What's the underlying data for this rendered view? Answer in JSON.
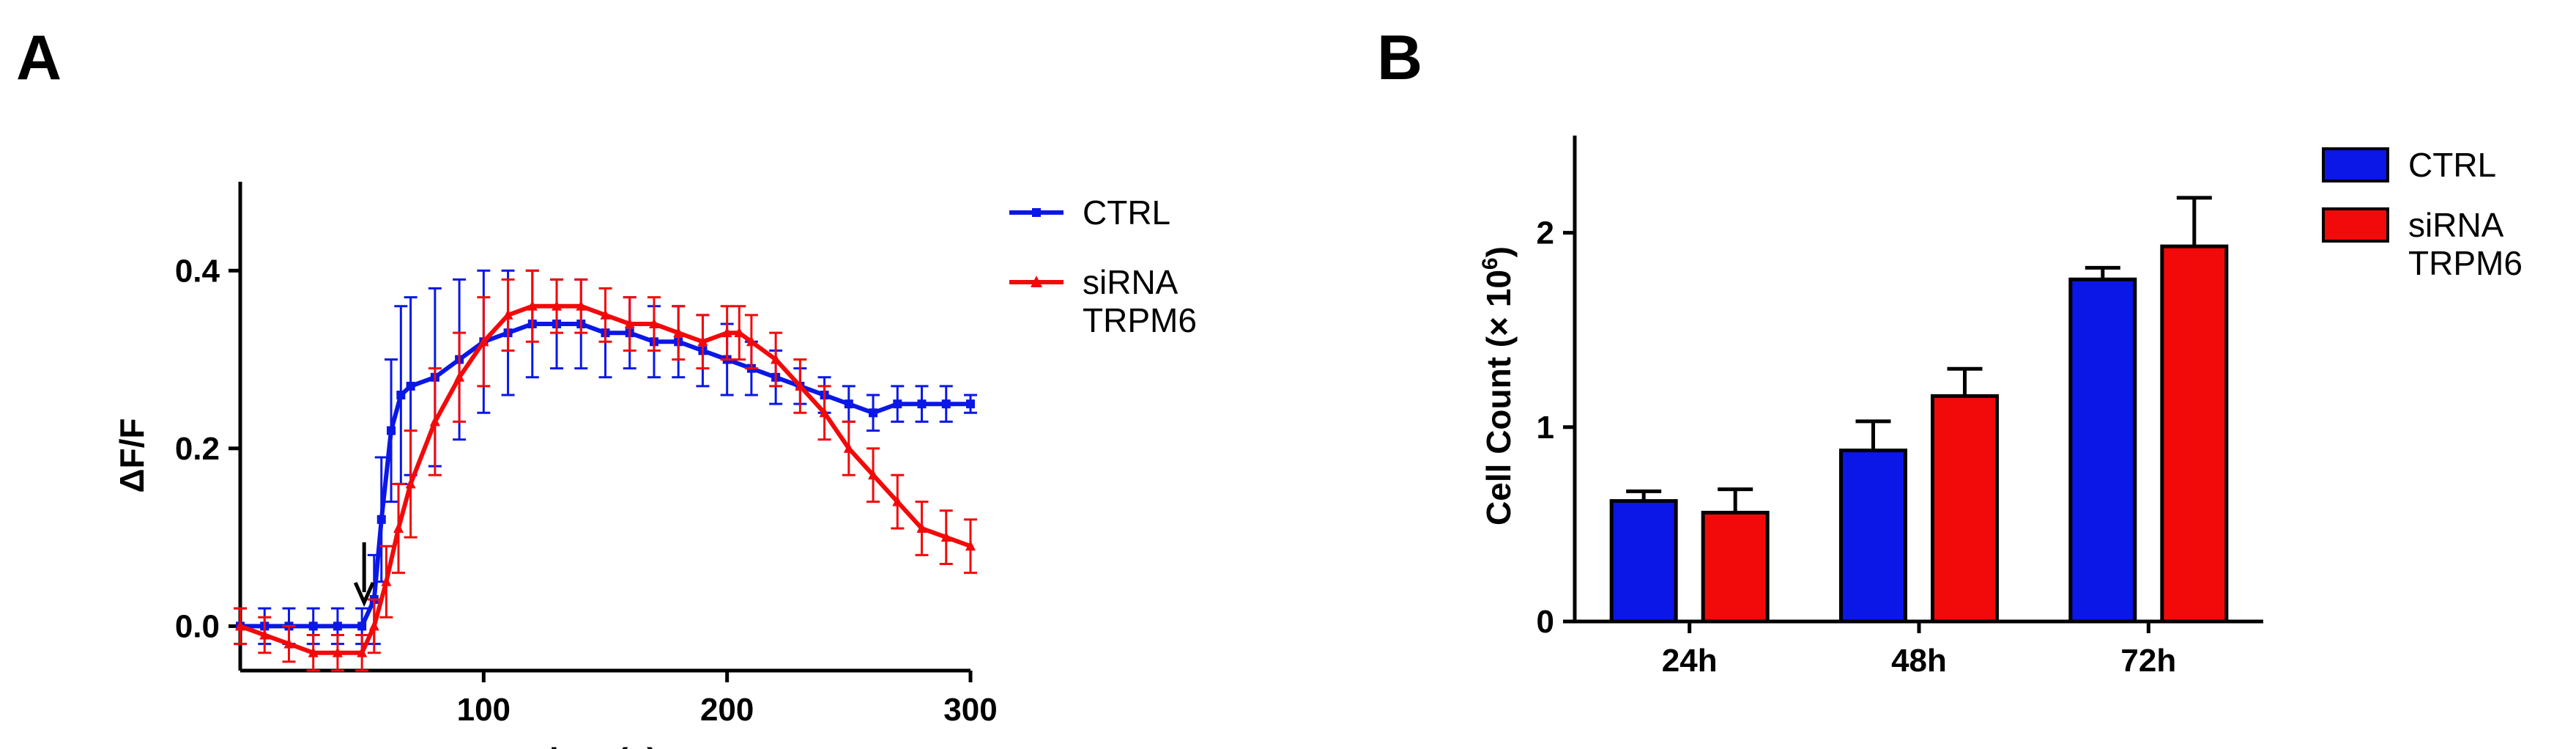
{
  "panels": {
    "a_label": "A",
    "b_label": "B"
  },
  "colors": {
    "ctrl": "#0a17e6",
    "sirna": "#f20a0a",
    "axis": "#000000"
  },
  "chart_data": [
    {
      "type": "line",
      "panel": "A",
      "xlabel": "time (s)",
      "ylabel": "ΔF/F",
      "xlim": [
        0,
        300
      ],
      "ylim": [
        -0.05,
        0.5
      ],
      "xticks": [
        100,
        200,
        300
      ],
      "xtick_labels": [
        "100",
        "200",
        "300"
      ],
      "yticks": [
        0.0,
        0.2,
        0.4
      ],
      "ytick_labels": [
        "0.0",
        "0.2",
        "0.4"
      ],
      "annotation": {
        "type": "arrow",
        "x": 50,
        "label": ""
      },
      "legend_position": "top-right (outside plot)",
      "series": [
        {
          "name": "CTRL",
          "legend_label": [
            "CTRL"
          ],
          "color": "#0a17e6",
          "marker": "square",
          "points": [
            [
              0,
              0.0,
              0.02
            ],
            [
              10,
              0.0,
              0.02
            ],
            [
              20,
              0.0,
              0.02
            ],
            [
              30,
              0.0,
              0.02
            ],
            [
              40,
              0.0,
              0.02
            ],
            [
              50,
              0.0,
              0.02
            ],
            [
              55,
              0.03,
              0.05
            ],
            [
              58,
              0.12,
              0.07
            ],
            [
              62,
              0.22,
              0.08
            ],
            [
              66,
              0.26,
              0.1
            ],
            [
              70,
              0.27,
              0.1
            ],
            [
              80,
              0.28,
              0.1
            ],
            [
              90,
              0.3,
              0.09
            ],
            [
              100,
              0.32,
              0.08
            ],
            [
              110,
              0.33,
              0.07
            ],
            [
              120,
              0.34,
              0.06
            ],
            [
              130,
              0.34,
              0.05
            ],
            [
              140,
              0.34,
              0.05
            ],
            [
              150,
              0.33,
              0.05
            ],
            [
              160,
              0.33,
              0.04
            ],
            [
              170,
              0.32,
              0.04
            ],
            [
              180,
              0.32,
              0.04
            ],
            [
              190,
              0.31,
              0.04
            ],
            [
              200,
              0.3,
              0.04
            ],
            [
              210,
              0.29,
              0.03
            ],
            [
              220,
              0.28,
              0.03
            ],
            [
              230,
              0.27,
              0.02
            ],
            [
              240,
              0.26,
              0.02
            ],
            [
              250,
              0.25,
              0.02
            ],
            [
              260,
              0.24,
              0.02
            ],
            [
              270,
              0.25,
              0.02
            ],
            [
              280,
              0.25,
              0.02
            ],
            [
              290,
              0.25,
              0.02
            ],
            [
              300,
              0.25,
              0.01
            ]
          ]
        },
        {
          "name": "siRNA TRPM6",
          "legend_label": [
            "siRNA",
            "TRPM6"
          ],
          "color": "#f20a0a",
          "marker": "triangle",
          "points": [
            [
              0,
              0.0,
              0.02
            ],
            [
              10,
              -0.01,
              0.02
            ],
            [
              20,
              -0.02,
              0.02
            ],
            [
              30,
              -0.03,
              0.02
            ],
            [
              40,
              -0.03,
              0.02
            ],
            [
              50,
              -0.03,
              0.02
            ],
            [
              55,
              0.0,
              0.03
            ],
            [
              60,
              0.05,
              0.04
            ],
            [
              65,
              0.11,
              0.05
            ],
            [
              70,
              0.16,
              0.06
            ],
            [
              80,
              0.23,
              0.06
            ],
            [
              90,
              0.28,
              0.05
            ],
            [
              100,
              0.32,
              0.05
            ],
            [
              110,
              0.35,
              0.04
            ],
            [
              120,
              0.36,
              0.04
            ],
            [
              130,
              0.36,
              0.03
            ],
            [
              140,
              0.36,
              0.03
            ],
            [
              150,
              0.35,
              0.03
            ],
            [
              160,
              0.34,
              0.03
            ],
            [
              170,
              0.34,
              0.03
            ],
            [
              180,
              0.33,
              0.03
            ],
            [
              190,
              0.32,
              0.03
            ],
            [
              200,
              0.33,
              0.03
            ],
            [
              205,
              0.33,
              0.03
            ],
            [
              210,
              0.32,
              0.03
            ],
            [
              220,
              0.3,
              0.03
            ],
            [
              230,
              0.27,
              0.03
            ],
            [
              240,
              0.24,
              0.03
            ],
            [
              250,
              0.2,
              0.03
            ],
            [
              260,
              0.17,
              0.03
            ],
            [
              270,
              0.14,
              0.03
            ],
            [
              280,
              0.11,
              0.03
            ],
            [
              290,
              0.1,
              0.03
            ],
            [
              300,
              0.09,
              0.03
            ]
          ]
        }
      ]
    },
    {
      "type": "bar",
      "panel": "B",
      "ylabel_main": "Cell Count (× 10",
      "ylabel_sup": "6",
      "ylabel_close": ")",
      "xlabel": "",
      "categories": [
        "24h",
        "48h",
        "72h"
      ],
      "ylim": [
        0,
        2.5
      ],
      "yticks": [
        0,
        1,
        2
      ],
      "ytick_labels": [
        "0",
        "1",
        "2"
      ],
      "legend_position": "top-right (outside plot)",
      "series": [
        {
          "name": "CTRL",
          "legend_label": [
            "CTRL"
          ],
          "color": "#0a17e6",
          "values": [
            0.62,
            0.88,
            1.76
          ],
          "errors": [
            0.05,
            0.15,
            0.06
          ]
        },
        {
          "name": "siRNA TRPM6",
          "legend_label": [
            "siRNA",
            "TRPM6"
          ],
          "color": "#f20a0a",
          "values": [
            0.56,
            1.16,
            1.93
          ],
          "errors": [
            0.12,
            0.14,
            0.25
          ]
        }
      ]
    }
  ]
}
